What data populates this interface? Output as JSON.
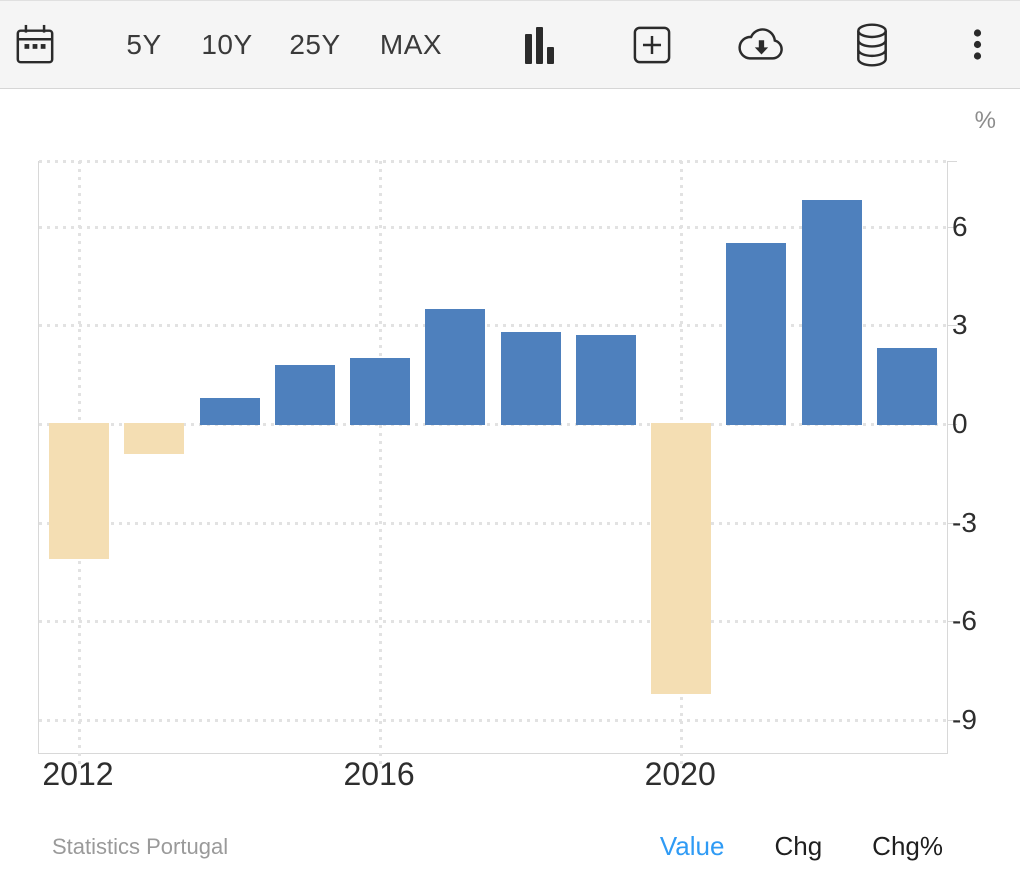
{
  "toolbar": {
    "calendar_icon": "calendar",
    "range_buttons": [
      {
        "label": "5Y"
      },
      {
        "label": "10Y"
      },
      {
        "label": "25Y"
      },
      {
        "label": "MAX"
      }
    ],
    "chart_type_icon": "bar-chart",
    "compare_icon": "plus-square",
    "download_icon": "cloud-download",
    "data_icon": "database",
    "more_icon": "kebab-menu"
  },
  "axis": {
    "unit_label": "%"
  },
  "footer": {
    "source": "Statistics Portugal",
    "links": [
      {
        "label": "Value",
        "active": true
      },
      {
        "label": "Chg",
        "active": false
      },
      {
        "label": "Chg%",
        "active": false
      }
    ]
  },
  "chart_data": {
    "type": "bar",
    "title": "",
    "xlabel": "",
    "ylabel": "%",
    "categories": [
      "2012",
      "2013",
      "2014",
      "2015",
      "2016",
      "2017",
      "2018",
      "2019",
      "2020",
      "2021",
      "2022",
      "2023"
    ],
    "values": [
      -4.1,
      -0.9,
      0.8,
      1.8,
      2.0,
      3.5,
      2.8,
      2.7,
      -8.2,
      5.5,
      6.8,
      2.3
    ],
    "ylim": [
      -10,
      8
    ],
    "yticks": [
      6,
      3,
      0,
      -3,
      -6,
      -9
    ],
    "xticks": [
      {
        "index": 0,
        "label": "2012"
      },
      {
        "index": 4,
        "label": "2016"
      },
      {
        "index": 8,
        "label": "2020"
      }
    ],
    "grid": "dotted",
    "legend": "none",
    "colors": {
      "positive": "#4e80bd",
      "negative": "#f4deb3"
    }
  },
  "colors": {
    "toolbar_bg": "#f5f5f5",
    "accent_link": "#2f9bf5",
    "axis_text": "#2e2e2e",
    "muted_text": "#9a9a9a",
    "grid": "#e2e2e2",
    "border": "#d8d8d8",
    "icon": "#2b2b2b"
  }
}
